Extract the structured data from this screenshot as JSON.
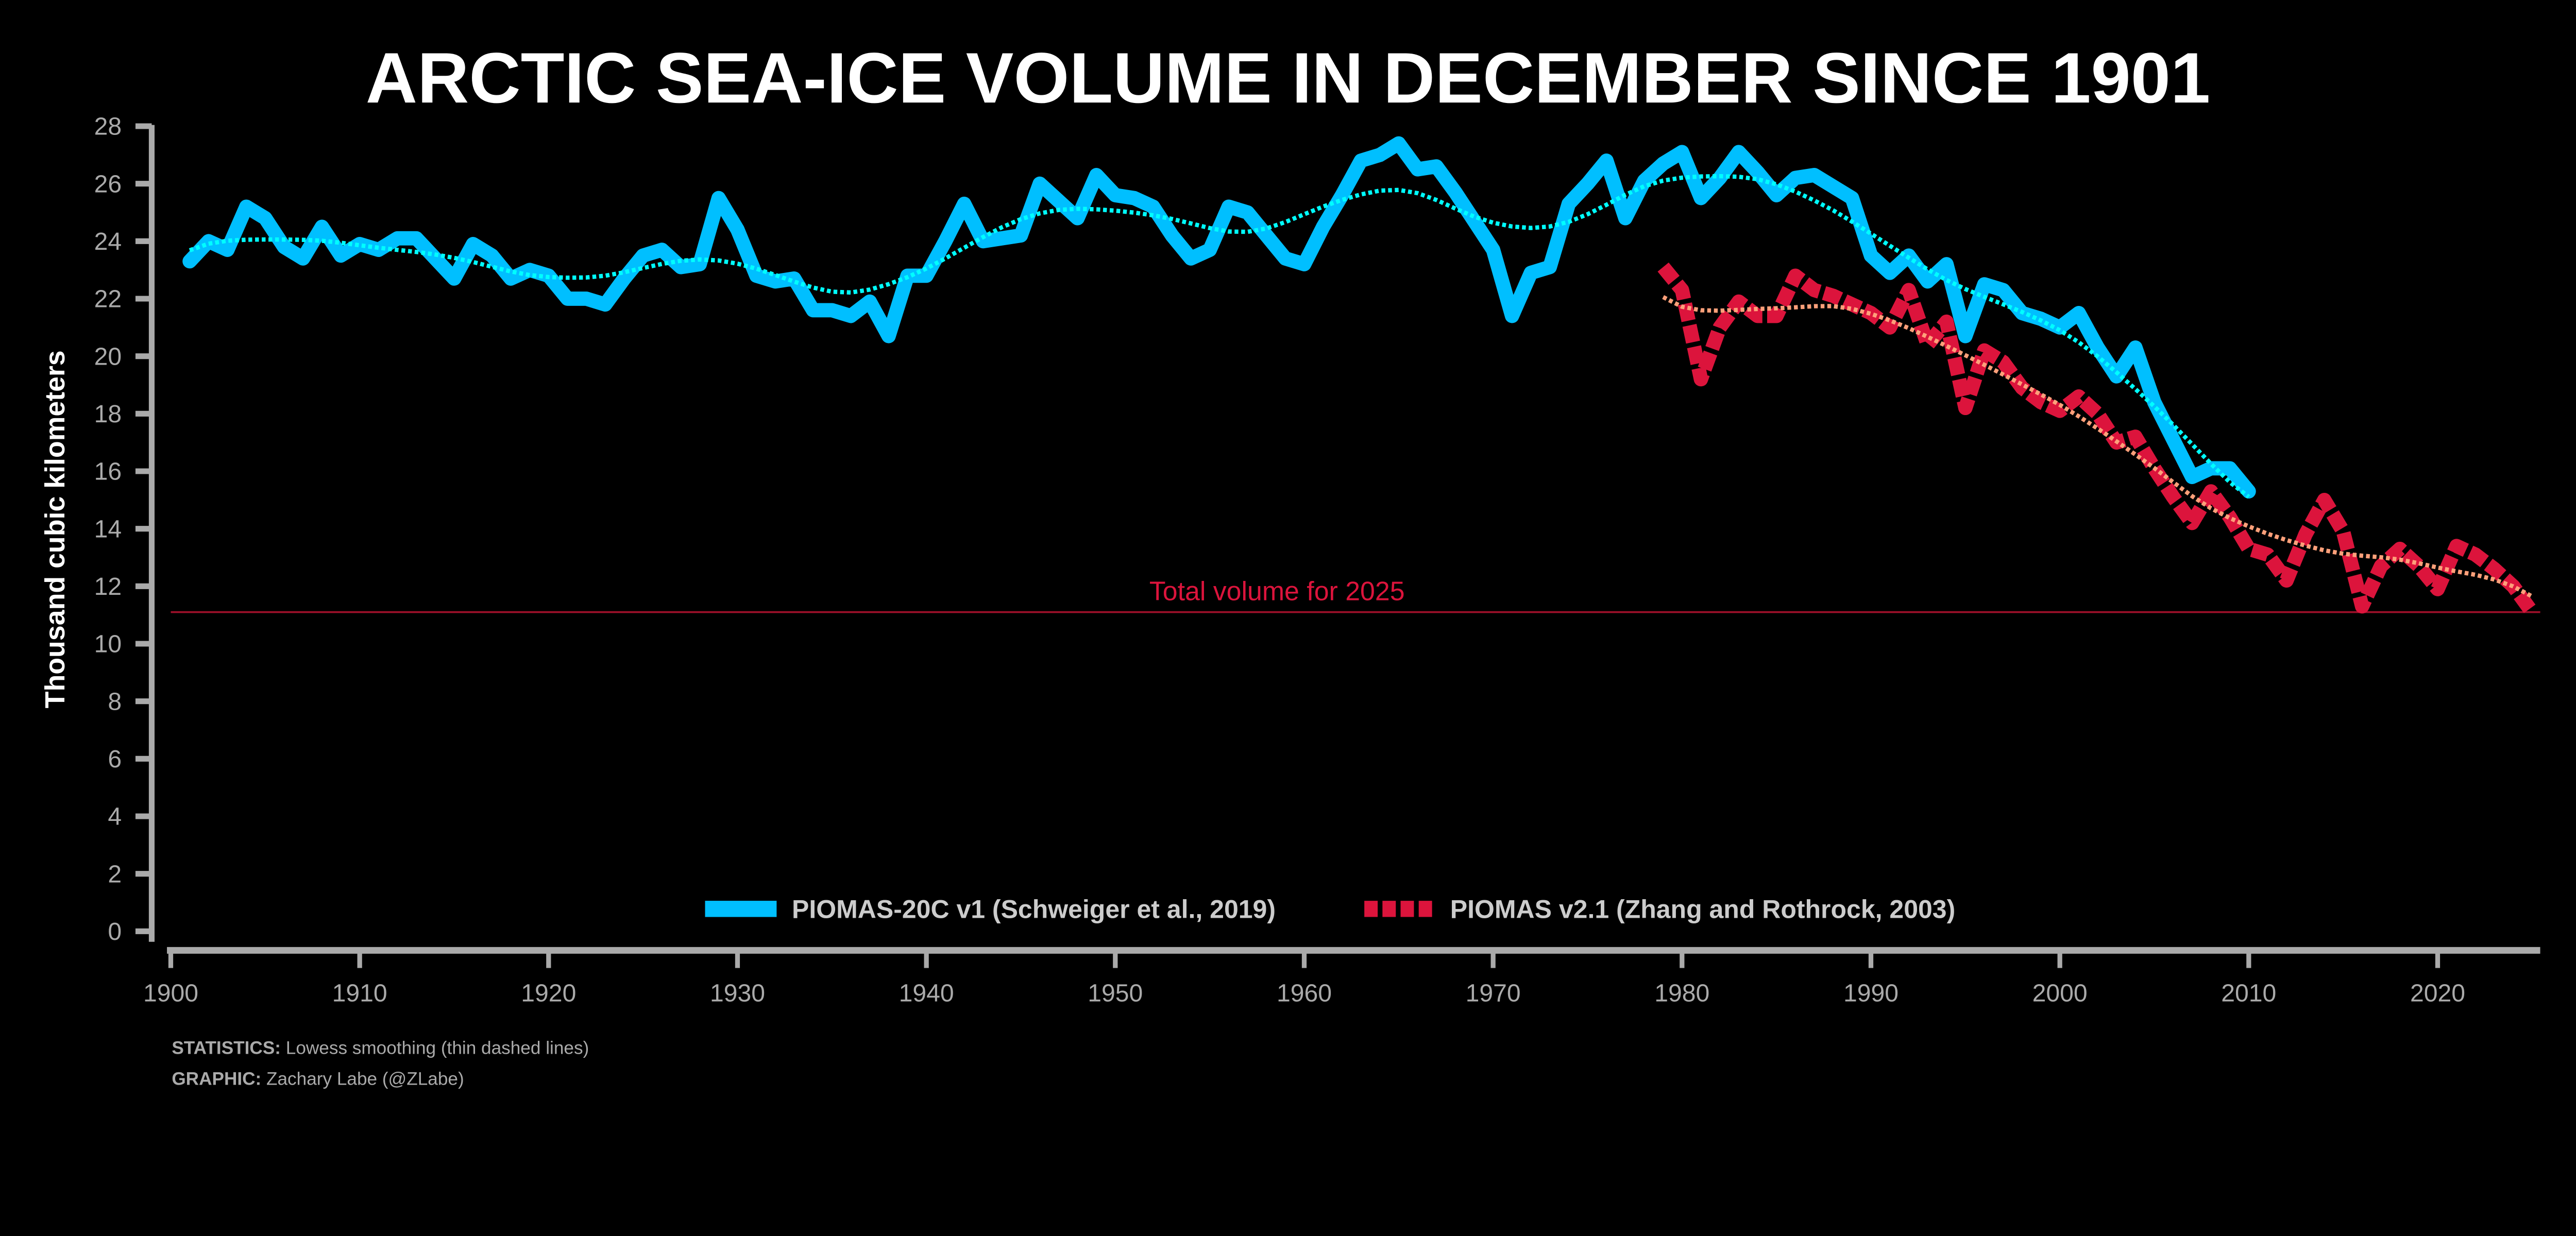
{
  "chart_data": {
    "type": "line",
    "title": "ARCTIC SEA-ICE VOLUME IN DECEMBER SINCE 1901",
    "xlabel": "",
    "ylabel": "Thousand cubic kilometers",
    "xlim": [
      1900,
      2025
    ],
    "ylim": [
      0,
      28
    ],
    "xticks": [
      1900,
      1910,
      1920,
      1930,
      1940,
      1950,
      1960,
      1970,
      1980,
      1990,
      2000,
      2010,
      2020
    ],
    "yticks": [
      0,
      2,
      4,
      6,
      8,
      10,
      12,
      14,
      16,
      18,
      20,
      22,
      24,
      26,
      28
    ],
    "grid": false,
    "legend_position": "bottom-center",
    "series": [
      {
        "name": "PIOMAS-20C v1 (Schweiger et al., 2019)",
        "color": "#00bfff",
        "smooth_color": "#00ffff",
        "start_year": 1901,
        "values": [
          23.3,
          24.0,
          23.7,
          25.2,
          24.8,
          23.8,
          23.4,
          24.5,
          23.5,
          23.9,
          23.7,
          24.1,
          24.1,
          23.4,
          22.7,
          23.9,
          23.5,
          22.7,
          23.0,
          22.8,
          22.0,
          22.0,
          21.8,
          22.7,
          23.5,
          23.7,
          23.1,
          23.2,
          25.5,
          24.4,
          22.8,
          22.6,
          22.7,
          21.6,
          21.6,
          21.4,
          21.9,
          20.7,
          22.8,
          22.8,
          24.0,
          25.3,
          24.0,
          24.1,
          24.2,
          26.0,
          25.4,
          24.8,
          26.3,
          25.6,
          25.5,
          25.2,
          24.2,
          23.4,
          23.7,
          25.2,
          25.0,
          24.2,
          23.4,
          23.2,
          24.5,
          25.6,
          26.8,
          27.0,
          27.4,
          26.5,
          26.6,
          25.7,
          24.7,
          23.7,
          21.4,
          22.9,
          23.1,
          25.3,
          26.0,
          26.8,
          24.8,
          26.1,
          26.7,
          27.1,
          25.5,
          26.2,
          27.1,
          26.4,
          25.6,
          26.2,
          26.3,
          25.9,
          25.5,
          23.5,
          22.9,
          23.5,
          22.6,
          23.2,
          20.7,
          22.5,
          22.3,
          21.5,
          21.3,
          21.0,
          21.5,
          20.3,
          19.3,
          20.3,
          18.4,
          17.1,
          15.8,
          16.1,
          16.1,
          15.3
        ]
      },
      {
        "name": "PIOMAS v2.1 (Zhang and Rothrock, 2003)",
        "color": "#dc143c",
        "smooth_color": "#ffa07a",
        "start_year": 1979,
        "values": [
          23.1,
          22.3,
          19.2,
          21.0,
          21.9,
          21.4,
          21.4,
          22.8,
          22.3,
          22.1,
          21.8,
          21.5,
          21.0,
          22.3,
          20.4,
          21.2,
          18.2,
          20.2,
          19.8,
          18.9,
          18.4,
          18.1,
          18.6,
          18.0,
          17.0,
          17.2,
          16.1,
          15.1,
          14.2,
          15.3,
          14.4,
          13.3,
          13.1,
          12.2,
          13.8,
          15.0,
          13.9,
          11.3,
          12.7,
          13.3,
          12.7,
          11.9,
          13.4,
          13.1,
          12.6,
          12.0,
          11.1
        ]
      }
    ],
    "reference_line": {
      "value": 11.1,
      "label": "Total volume for 2025",
      "color": "#dc143c"
    },
    "smoothing_note": "Lowess smoothing (thin dashed lines)"
  },
  "footer": {
    "statistics_label": "STATISTICS:",
    "statistics_text": " Lowess smoothing (thin dashed lines)",
    "graphic_label": "GRAPHIC:",
    "graphic_text": " Zachary Labe (@ZLabe)"
  }
}
